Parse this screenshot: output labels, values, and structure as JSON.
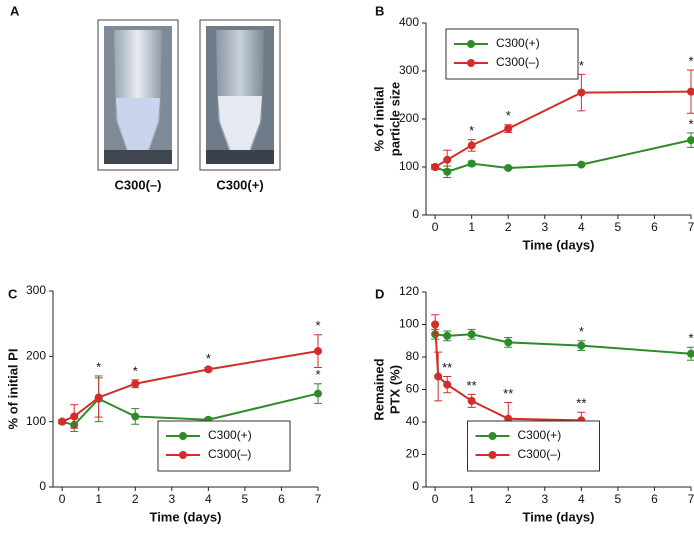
{
  "panel_a": {
    "panel_label": "A",
    "captions": [
      "C300(–)",
      "C300(+)"
    ]
  },
  "chart_data": [
    {
      "type": "line",
      "panel_label": "B",
      "xlabel": "Time (days)",
      "ylabel": [
        "% of initial",
        "particle size"
      ],
      "xlim": [
        -0.25,
        7
      ],
      "xticks": [
        0,
        1,
        2,
        3,
        4,
        5,
        6,
        7
      ],
      "ylim": [
        0,
        400
      ],
      "yticks": [
        0,
        100,
        200,
        300,
        400
      ],
      "legend": "upper left",
      "series": [
        {
          "name": "C300(+)",
          "color": "#2f8a2a",
          "x": [
            0,
            0.33,
            1,
            2,
            4,
            7
          ],
          "values": [
            100,
            90,
            107,
            98,
            105,
            156
          ],
          "errors": [
            5,
            12,
            5,
            3,
            3,
            15
          ],
          "annotations": [
            null,
            null,
            null,
            null,
            null,
            "*"
          ]
        },
        {
          "name": "C300(–)",
          "color": "#d22d2a",
          "x": [
            0,
            0.33,
            1,
            2,
            4,
            7
          ],
          "values": [
            100,
            115,
            145,
            180,
            255,
            257
          ],
          "errors": [
            5,
            20,
            12,
            8,
            38,
            45
          ],
          "annotations": [
            null,
            null,
            "*",
            "*",
            "*",
            "*"
          ]
        }
      ]
    },
    {
      "type": "line",
      "panel_label": "C",
      "xlabel": "Time (days)",
      "ylabel": [
        "% of initial PI"
      ],
      "xlim": [
        -0.25,
        7
      ],
      "xticks": [
        0,
        1,
        2,
        3,
        4,
        5,
        6,
        7
      ],
      "ylim": [
        0,
        300
      ],
      "yticks": [
        0,
        100,
        200,
        300
      ],
      "legend": "lower right",
      "series": [
        {
          "name": "C300(+)",
          "color": "#2f8a2a",
          "x": [
            0,
            0.33,
            1,
            2,
            4,
            7
          ],
          "values": [
            100,
            95,
            135,
            108,
            103,
            143
          ],
          "errors": [
            3,
            10,
            35,
            12,
            3,
            15
          ],
          "annotations": [
            null,
            null,
            "*",
            null,
            null,
            "*"
          ]
        },
        {
          "name": "C300(–)",
          "color": "#d22d2a",
          "x": [
            0,
            0.33,
            1,
            2,
            4,
            7
          ],
          "values": [
            100,
            108,
            137,
            158,
            180,
            208
          ],
          "errors": [
            3,
            18,
            30,
            6,
            3,
            25
          ],
          "annotations": [
            null,
            null,
            null,
            "*",
            "*",
            "*"
          ]
        }
      ]
    },
    {
      "type": "line",
      "panel_label": "D",
      "xlabel": "Time (days)",
      "ylabel": [
        "Remained",
        "PTX (%)"
      ],
      "xlim": [
        -0.25,
        7
      ],
      "xticks": [
        0,
        1,
        2,
        3,
        4,
        5,
        6,
        7
      ],
      "ylim": [
        0,
        120
      ],
      "yticks": [
        0,
        20,
        40,
        60,
        80,
        100,
        120
      ],
      "legend": "lower center",
      "series": [
        {
          "name": "C300(+)",
          "color": "#2f8a2a",
          "x": [
            0,
            0.33,
            1,
            2,
            4,
            7
          ],
          "values": [
            94,
            93,
            94,
            89,
            87,
            82
          ],
          "errors": [
            3,
            3,
            3,
            3,
            3,
            4
          ],
          "annotations": [
            null,
            null,
            null,
            null,
            "*",
            "*"
          ]
        },
        {
          "name": "C300(–)",
          "color": "#d22d2a",
          "x": [
            0,
            0.083,
            0.33,
            1,
            2,
            4
          ],
          "values": [
            100,
            68,
            63,
            53,
            42,
            41
          ],
          "errors": [
            6,
            15,
            5,
            4,
            10,
            5
          ],
          "annotations": [
            null,
            null,
            "**",
            "**",
            "**",
            "**"
          ]
        }
      ]
    }
  ]
}
